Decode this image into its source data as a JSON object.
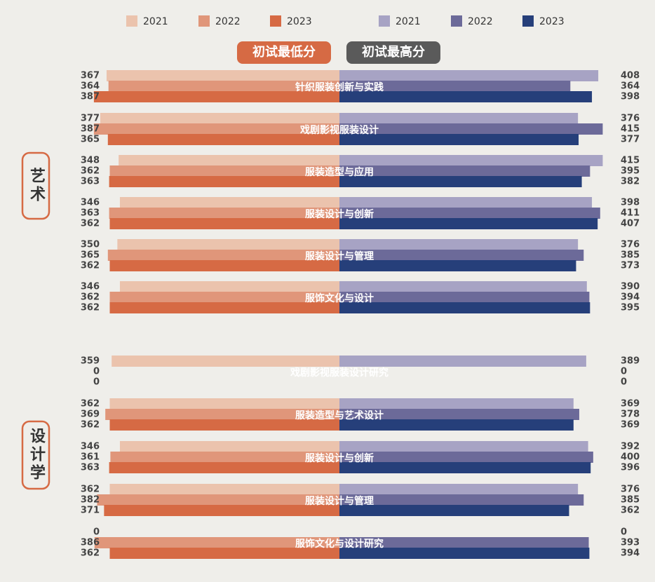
{
  "chart_data": {
    "type": "butterfly",
    "left_title": "初试最低分",
    "right_title": "初试最高分",
    "left_title_color": "#d66a44",
    "right_title_color": "#5a5a5a",
    "xlim": [
      0,
      535
    ],
    "sections": [
      {
        "label": "艺术",
        "categories": [
          "针织服装创新与实践",
          "戏剧影视服装设计",
          "服装造型与应用",
          "服装设计与创新",
          "服装设计与管理",
          "服饰文化与设计"
        ]
      },
      {
        "label": "设计学",
        "categories": [
          "戏剧影视服装设计研究",
          "服装造型与艺术设计",
          "服装设计与创新",
          "服装设计与管理",
          "服饰文化与设计研究"
        ]
      }
    ],
    "left_series": [
      {
        "name": "2021",
        "color": "#ebc3ad",
        "values": [
          367,
          377,
          348,
          346,
          350,
          346,
          359,
          362,
          346,
          362,
          0
        ]
      },
      {
        "name": "2022",
        "color": "#e0967a",
        "values": [
          364,
          387,
          362,
          363,
          365,
          362,
          0,
          369,
          361,
          382,
          386
        ]
      },
      {
        "name": "2023",
        "color": "#d66a44",
        "values": [
          387,
          365,
          363,
          362,
          362,
          362,
          0,
          362,
          363,
          371,
          362
        ]
      }
    ],
    "right_series": [
      {
        "name": "2021",
        "color": "#a7a3c4",
        "values": [
          408,
          376,
          415,
          398,
          376,
          390,
          389,
          369,
          392,
          376,
          0
        ]
      },
      {
        "name": "2022",
        "color": "#6c6a99",
        "values": [
          364,
          415,
          395,
          411,
          385,
          394,
          0,
          378,
          400,
          385,
          393
        ]
      },
      {
        "name": "2023",
        "color": "#263f7a",
        "values": [
          398,
          377,
          382,
          407,
          373,
          395,
          0,
          369,
          396,
          362,
          394
        ]
      }
    ]
  }
}
